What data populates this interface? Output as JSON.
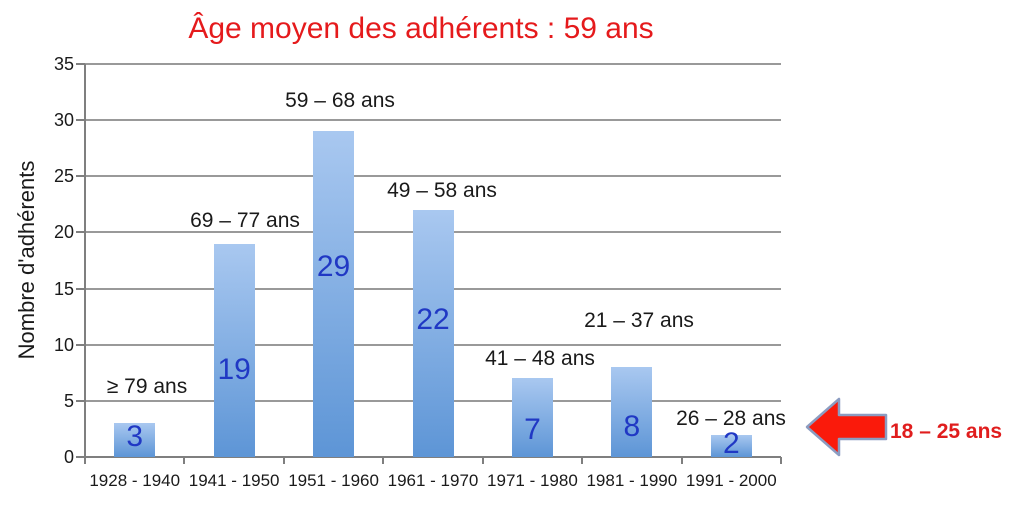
{
  "title": {
    "text": "Âge moyen des adhérents : 59 ans",
    "color": "#e51a1c"
  },
  "chart_data": {
    "type": "bar",
    "categories": [
      "1928 - 1940",
      "1941 - 1950",
      "1951 - 1960",
      "1961 - 1970",
      "1971 - 1980",
      "1981 - 1990",
      "1991 - 2000"
    ],
    "values": [
      3,
      19,
      29,
      22,
      7,
      8,
      2
    ],
    "bar_labels": [
      "3",
      "19",
      "29",
      "22",
      "7",
      "8",
      "2"
    ],
    "annotations": [
      "≥ 79 ans",
      "69 – 77 ans",
      "59 – 68 ans",
      "49 – 58 ans",
      "41 – 48 ans",
      "21 – 37 ans",
      "26 – 28 ans"
    ],
    "title": "Âge moyen des adhérents : 59 ans",
    "xlabel": "",
    "ylabel": "Nombre d'adhérents",
    "ylim": [
      0,
      35
    ],
    "ytick_step": 5,
    "yticks": [
      "0",
      "5",
      "10",
      "15",
      "20",
      "25",
      "30",
      "35"
    ],
    "grid": true,
    "legend": false,
    "bar_color_top": "#a9c8f0",
    "bar_color_bottom": "#5d95d6",
    "value_label_color": "#2038c4",
    "gridline_color": "#999999",
    "axis_color": "#7f7f7f"
  },
  "callout": {
    "text": "18 – 25 ans",
    "color": "#e01d1d",
    "arrow_fill": "#fa1a0b",
    "arrow_stroke": "#8b9cc1",
    "arrow_direction": "left"
  }
}
